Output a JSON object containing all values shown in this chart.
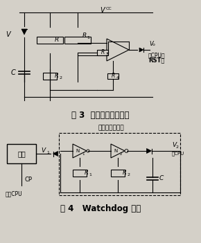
{
  "bg_color": "#d4d0c8",
  "fig_width": 2.9,
  "fig_height": 3.51,
  "dpi": 100,
  "title3": "图 3  上电延时复位电路",
  "title4": "图 4   Watchdog 电路",
  "subtitle4": "虚框内为振荡器",
  "vcc_label": "V",
  "vcc_sub": "CC",
  "r1_label": "R",
  "r1_sub": "1",
  "r2_label": "R",
  "r2_sub": "2",
  "r3_label": "R",
  "r3_sub": "3",
  "r4_label": "R",
  "r4_sub": "4",
  "c_label": "C",
  "v_label": "V",
  "vo_label": "V",
  "vo_sub": "o",
  "rst_label": "去CPU的",
  "rst_sub": "RST脚",
  "r_label": "R",
  "fig3_v_label": "V",
  "n1_label": "N",
  "n1_sub": "1",
  "n2_label": "N",
  "n2_sub": "2",
  "v1_label": "V",
  "v1_sub": "1",
  "v2_label": "V",
  "v2_sub": "2",
  "dan_label": "单稳",
  "cp_label": "CP",
  "from_cpu": "来自CPU",
  "to_cpu": "至CPU"
}
